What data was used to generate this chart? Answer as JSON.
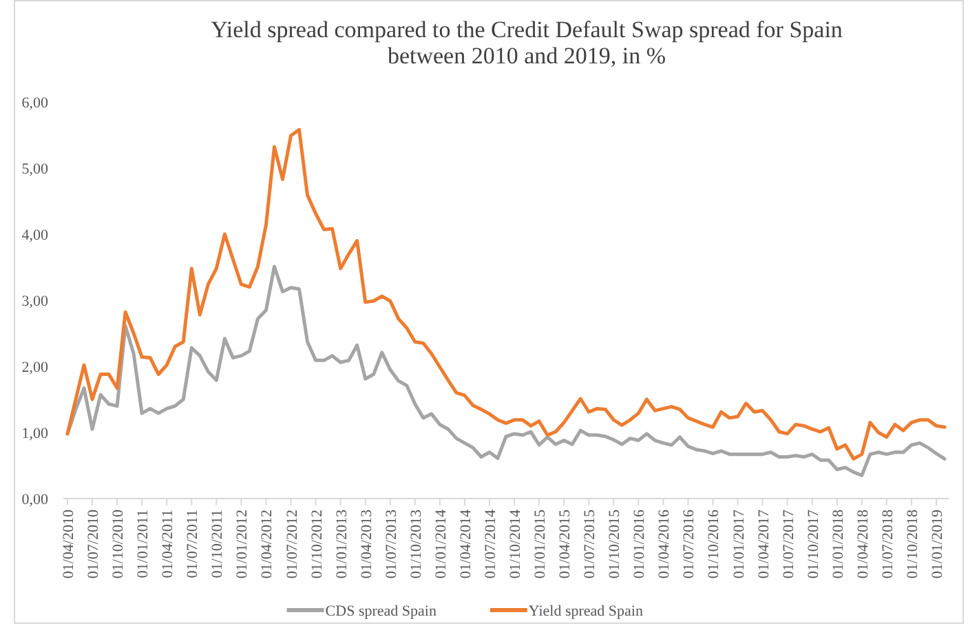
{
  "chart_data": {
    "type": "line",
    "title": "Yield spread compared to the Credit Default Swap spread for Spain between 2010 and 2019, in %",
    "categories": [
      "01/04/2010",
      null,
      null,
      "01/07/2010",
      null,
      null,
      "01/10/2010",
      null,
      null,
      "01/01/2011",
      null,
      null,
      "01/04/2011",
      null,
      null,
      "01/07/2011",
      null,
      null,
      "01/10/2011",
      null,
      null,
      "01/01/2012",
      null,
      null,
      "01/04/2012",
      null,
      null,
      "01/07/2012",
      null,
      null,
      "01/10/2012",
      null,
      null,
      "01/01/2013",
      null,
      null,
      "01/04/2013",
      null,
      null,
      "01/07/2013",
      null,
      null,
      "01/10/2013",
      null,
      null,
      "01/01/2014",
      null,
      null,
      "01/04/2014",
      null,
      null,
      "01/07/2014",
      null,
      null,
      "01/10/2014",
      null,
      null,
      "01/01/2015",
      null,
      null,
      "01/04/2015",
      null,
      null,
      "01/07/2015",
      null,
      null,
      "01/10/2015",
      null,
      null,
      "01/01/2016",
      null,
      null,
      "01/04/2016",
      null,
      null,
      "01/07/2016",
      null,
      null,
      "01/10/2016",
      null,
      null,
      "01/01/2017",
      null,
      null,
      "01/04/2017",
      null,
      null,
      "01/07/2017",
      null,
      null,
      "01/10/2017",
      null,
      null,
      "01/01/2018",
      null,
      null,
      "01/04/2018",
      null,
      null,
      "01/07/2018",
      null,
      null,
      "01/10/2018",
      null,
      null,
      "01/01/2019",
      null
    ],
    "series": [
      {
        "name": "CDS spread Spain",
        "color": "#a5a5a5",
        "values": [
          0.98,
          1.35,
          1.67,
          1.05,
          1.57,
          1.43,
          1.4,
          2.61,
          2.19,
          1.29,
          1.36,
          1.29,
          1.36,
          1.4,
          1.5,
          2.28,
          2.16,
          1.92,
          1.79,
          2.42,
          2.13,
          2.16,
          2.23,
          2.72,
          2.85,
          3.51,
          3.13,
          3.19,
          3.17,
          2.37,
          2.09,
          2.09,
          2.16,
          2.06,
          2.09,
          2.32,
          1.81,
          1.88,
          2.21,
          1.95,
          1.78,
          1.71,
          1.43,
          1.22,
          1.28,
          1.12,
          1.05,
          0.91,
          0.84,
          0.77,
          0.63,
          0.7,
          0.61,
          0.94,
          0.98,
          0.96,
          1.01,
          0.81,
          0.93,
          0.82,
          0.88,
          0.82,
          1.03,
          0.96,
          0.96,
          0.94,
          0.89,
          0.82,
          0.91,
          0.88,
          0.98,
          0.88,
          0.84,
          0.81,
          0.93,
          0.79,
          0.74,
          0.72,
          0.68,
          0.72,
          0.67,
          0.67,
          0.67,
          0.67,
          0.67,
          0.7,
          0.63,
          0.63,
          0.65,
          0.63,
          0.67,
          0.58,
          0.58,
          0.44,
          0.47,
          0.4,
          0.35,
          0.67,
          0.7,
          0.67,
          0.7,
          0.7,
          0.81,
          0.84,
          0.77,
          0.68,
          0.6
        ]
      },
      {
        "name": "Yield spread Spain",
        "color": "#ed7d31",
        "values": [
          0.98,
          1.5,
          2.02,
          1.5,
          1.88,
          1.88,
          1.67,
          2.82,
          2.5,
          2.14,
          2.13,
          1.88,
          2.02,
          2.3,
          2.37,
          3.48,
          2.78,
          3.24,
          3.48,
          4.0,
          3.62,
          3.24,
          3.2,
          3.51,
          4.14,
          5.32,
          4.83,
          5.49,
          5.58,
          4.59,
          4.31,
          4.07,
          4.08,
          3.48,
          3.7,
          3.9,
          2.97,
          2.99,
          3.06,
          2.99,
          2.72,
          2.58,
          2.37,
          2.35,
          2.19,
          1.99,
          1.79,
          1.6,
          1.56,
          1.41,
          1.35,
          1.28,
          1.19,
          1.14,
          1.19,
          1.19,
          1.1,
          1.17,
          0.96,
          1.01,
          1.15,
          1.33,
          1.51,
          1.31,
          1.36,
          1.35,
          1.19,
          1.11,
          1.19,
          1.29,
          1.5,
          1.33,
          1.36,
          1.39,
          1.35,
          1.22,
          1.17,
          1.12,
          1.08,
          1.31,
          1.22,
          1.24,
          1.44,
          1.31,
          1.33,
          1.19,
          1.01,
          0.98,
          1.12,
          1.1,
          1.05,
          1.01,
          1.07,
          0.75,
          0.81,
          0.6,
          0.67,
          1.15,
          1.0,
          0.93,
          1.12,
          1.03,
          1.15,
          1.19,
          1.19,
          1.1,
          1.08
        ]
      }
    ],
    "ylim": [
      0,
      6
    ],
    "yticks": [
      {
        "value": 0,
        "label": "0,00"
      },
      {
        "value": 1,
        "label": "1,00"
      },
      {
        "value": 2,
        "label": "2,00"
      },
      {
        "value": 3,
        "label": "3,00"
      },
      {
        "value": 4,
        "label": "4,00"
      },
      {
        "value": 5,
        "label": "5,00"
      },
      {
        "value": 6,
        "label": "6,00"
      }
    ],
    "legend": "bottom",
    "line_style": "solid",
    "marker": "none"
  }
}
